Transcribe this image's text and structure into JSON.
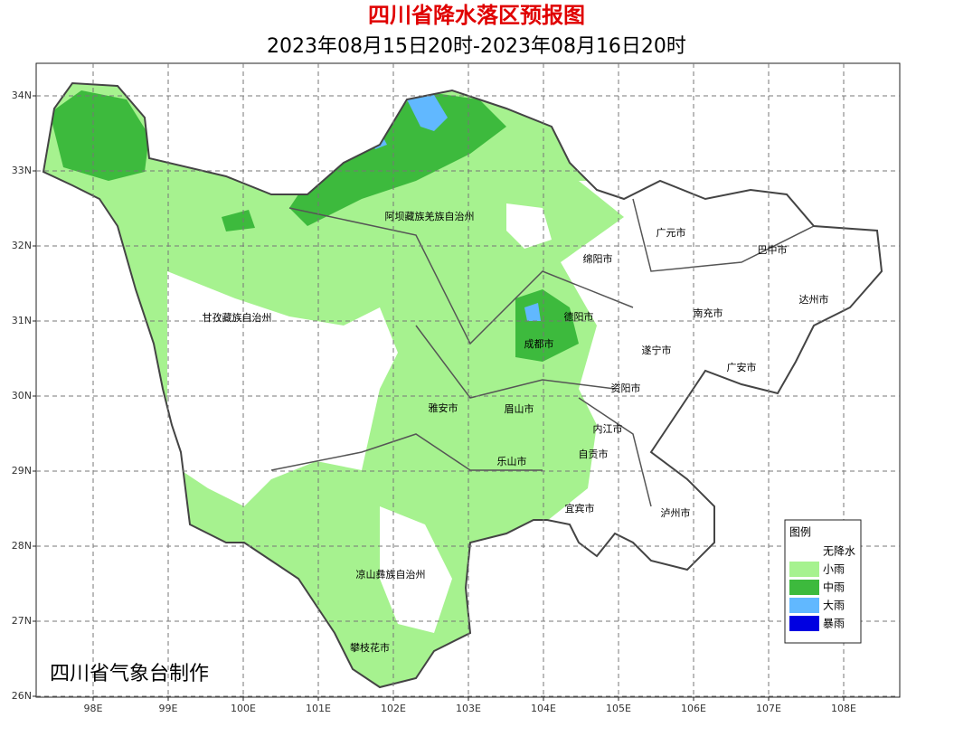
{
  "header": {
    "title": "四川省降水落区预报图",
    "subtitle": "2023年08月15日20时-2023年08月16日20时"
  },
  "map": {
    "lon_ticks": [
      {
        "value": 98,
        "label": "98E"
      },
      {
        "value": 99,
        "label": "99E"
      },
      {
        "value": 100,
        "label": "100E"
      },
      {
        "value": 101,
        "label": "101E"
      },
      {
        "value": 102,
        "label": "102E"
      },
      {
        "value": 103,
        "label": "103E"
      },
      {
        "value": 104,
        "label": "104E"
      },
      {
        "value": 105,
        "label": "105E"
      },
      {
        "value": 106,
        "label": "106E"
      },
      {
        "value": 107,
        "label": "107E"
      },
      {
        "value": 108,
        "label": "108E"
      }
    ],
    "lat_ticks": [
      {
        "value": 34,
        "label": "34N"
      },
      {
        "value": 33,
        "label": "33N"
      },
      {
        "value": 32,
        "label": "32N"
      },
      {
        "value": 31,
        "label": "31N"
      },
      {
        "value": 30,
        "label": "30N"
      },
      {
        "value": 29,
        "label": "29N"
      },
      {
        "value": 28,
        "label": "28N"
      },
      {
        "value": 27,
        "label": "27N"
      },
      {
        "value": 26,
        "label": "26N"
      }
    ],
    "places": [
      "阿坝藏族羌族自治州",
      "甘孜藏族自治州",
      "广元市",
      "绵阳市",
      "巴中市",
      "达州市",
      "德阳市",
      "南充市",
      "成都市",
      "遂宁市",
      "广安市",
      "资阳市",
      "雅安市",
      "眉山市",
      "内江市",
      "自贡市",
      "乐山市",
      "宜宾市",
      "泸州市",
      "凉山彝族自治州",
      "攀枝花市"
    ],
    "credit": "四川省气象台制作"
  },
  "legend": {
    "title": "图例",
    "items": [
      {
        "label": "无降水",
        "color": "#ffffff"
      },
      {
        "label": "小雨",
        "color": "#a6f28f"
      },
      {
        "label": "中雨",
        "color": "#3dba3d"
      },
      {
        "label": "大雨",
        "color": "#61b8ff"
      },
      {
        "label": "暴雨",
        "color": "#0000e1"
      }
    ]
  }
}
